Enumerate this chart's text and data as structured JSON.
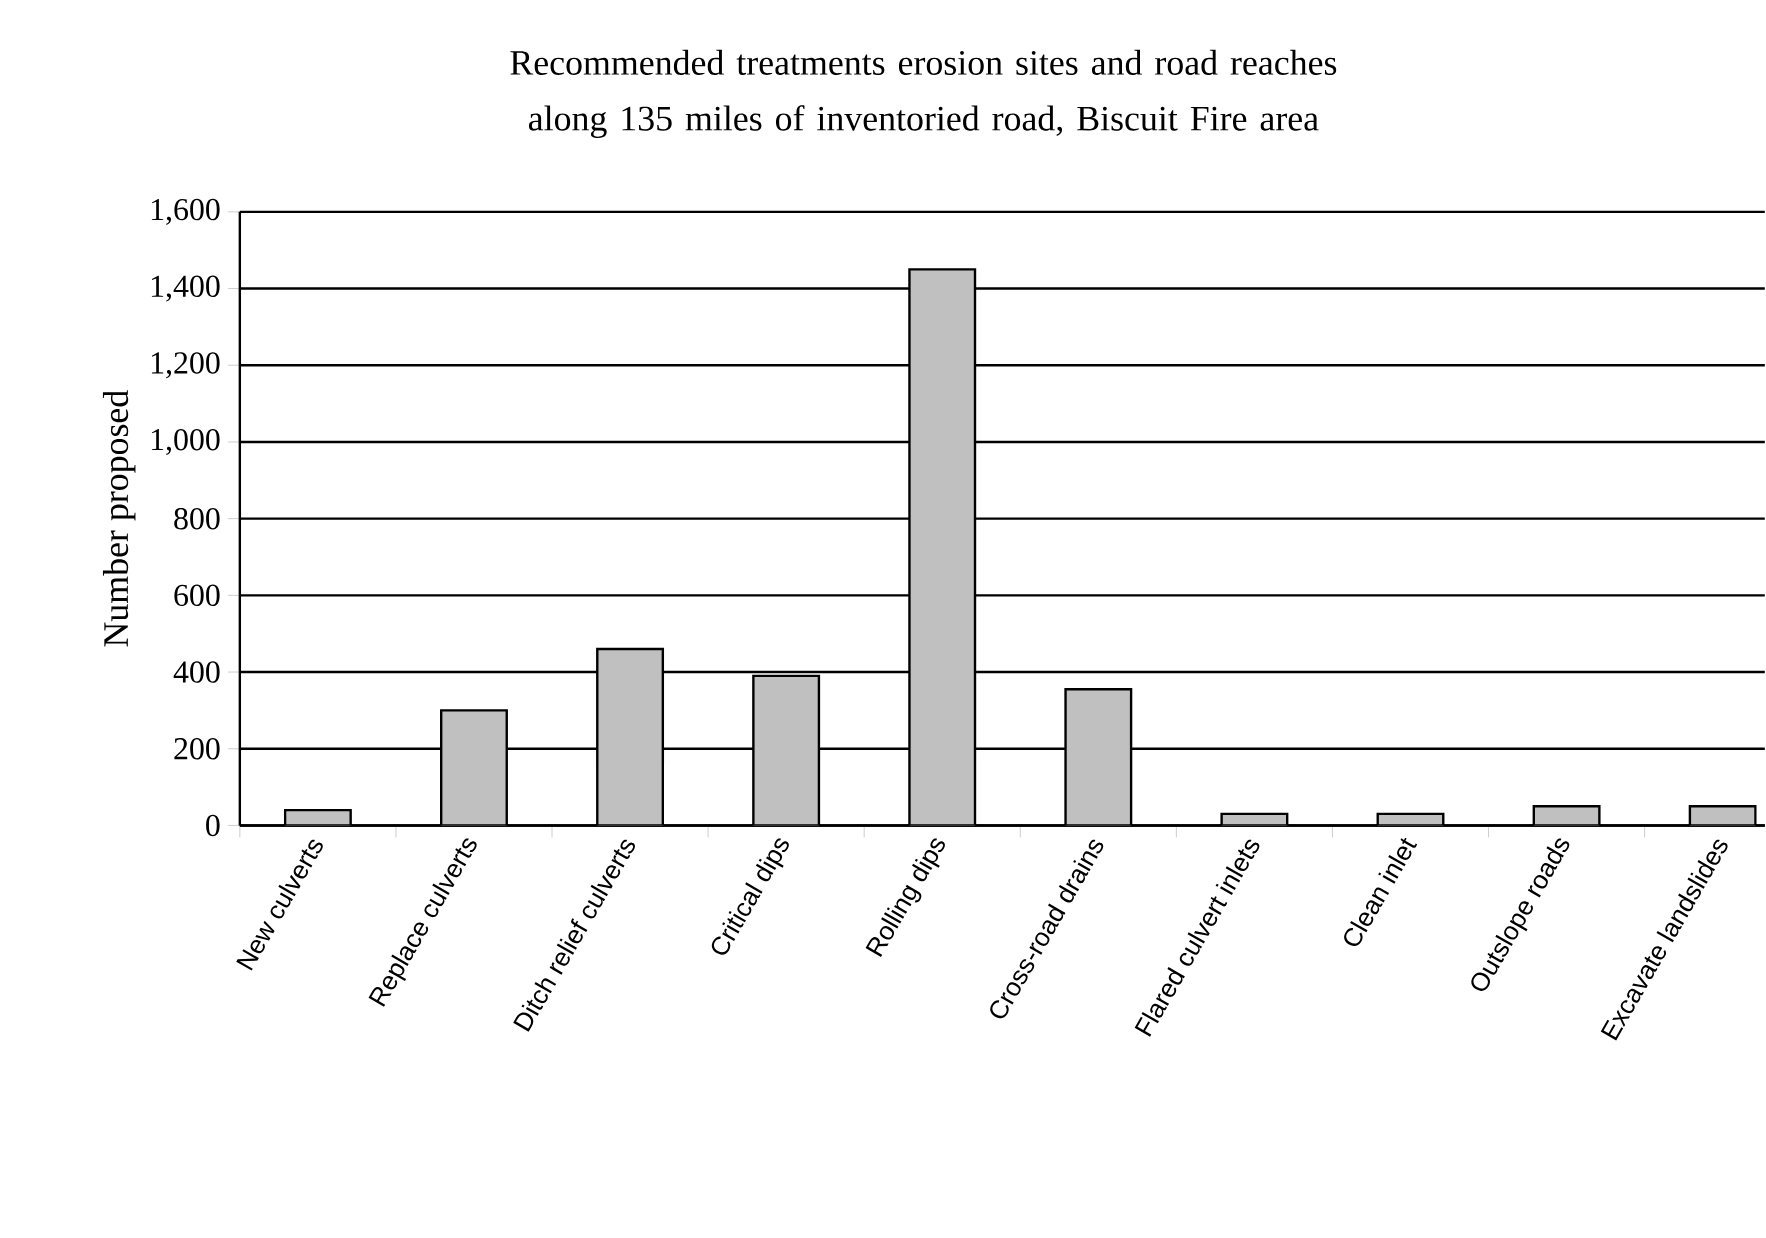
{
  "chart_data": {
    "type": "bar",
    "title": "Recommended treatments erosion sites and road reaches along 135 miles of inventoried road, Biscuit Fire area",
    "ylabel": "Number proposed",
    "categories": [
      "New culverts",
      "Replace culverts",
      "Ditch relief culverts",
      "Critical dips",
      "Rolling dips",
      "Cross-road drains",
      "Flared culvert inlets",
      "Clean inlet",
      "Outslope roads",
      "Excavate landslides"
    ],
    "values": [
      40,
      300,
      460,
      390,
      1450,
      355,
      30,
      30,
      50,
      50
    ],
    "color": "#c0c0c0",
    "ylim": [
      0,
      1600
    ],
    "yticks": [
      0,
      200,
      400,
      600,
      800,
      {
        "value": 1000,
        "label": "1,000"
      },
      {
        "value": 1200,
        "label": "1,200"
      },
      {
        "value": 1400,
        "label": "1,400"
      },
      {
        "value": 1600,
        "label": "1,600"
      }
    ],
    "grid": "y"
  }
}
